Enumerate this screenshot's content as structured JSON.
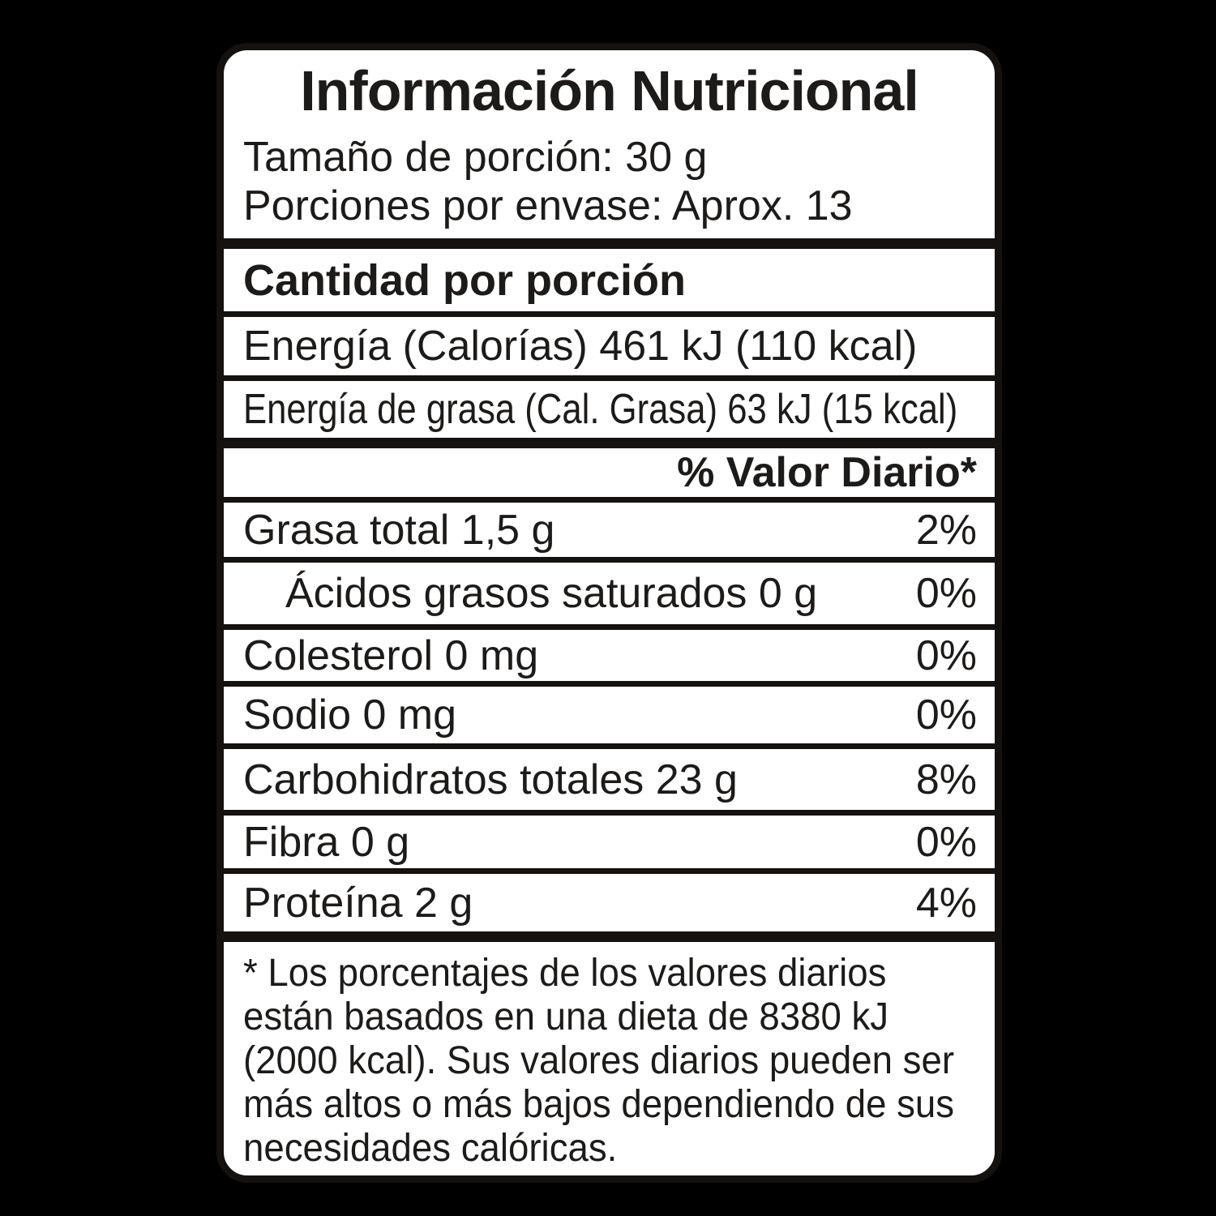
{
  "label": {
    "title": "Información Nutricional",
    "serving": {
      "size": "Tamaño de porción: 30 g",
      "per_container": "Porciones por envase: Aprox. 13"
    },
    "amount_header": "Cantidad por porción",
    "energy": [
      "Energía (Calorías) 461 kJ (110 kcal)",
      "Energía de grasa (Cal. Grasa) 63 kJ (15 kcal)"
    ],
    "daily_value_header": "% Valor Diario*",
    "nutrients": [
      {
        "name": "Grasa total 1,5 g",
        "dv": "2%"
      },
      {
        "name": "Ácidos grasos saturados 0 g",
        "dv": "0%"
      },
      {
        "name": "Colesterol 0 mg",
        "dv": "0%"
      },
      {
        "name": "Sodio 0 mg",
        "dv": "0%"
      },
      {
        "name": "Carbohidratos totales 23 g",
        "dv": "8%"
      },
      {
        "name": "Fibra 0 g",
        "dv": "0%"
      },
      {
        "name": "Proteína 2 g",
        "dv": "4%"
      }
    ],
    "footnote": "* Los porcentajes de los valores diarios están basados en una dieta de 8380 kJ (2000 kcal). Sus valores diarios pueden ser más altos o más bajos dependiendo de sus necesidades calóricas.",
    "colors": {
      "background": "#000000",
      "panel": "#ffffff",
      "text": "#1d1b19",
      "border": "#14110f"
    }
  }
}
